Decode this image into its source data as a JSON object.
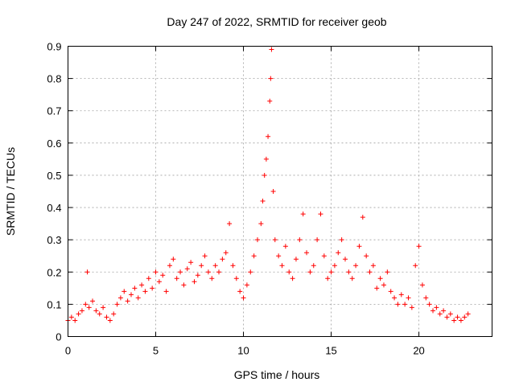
{
  "chart_data": {
    "type": "scatter",
    "title": "Day 247 of 2022, SRMTID for receiver geob",
    "xlabel": "GPS time / hours",
    "ylabel": "SRMTID / TECUs",
    "xlim": [
      0,
      24.17
    ],
    "ylim": [
      0,
      0.9
    ],
    "xticks": [
      0,
      5,
      10,
      15,
      20
    ],
    "yticks": [
      0,
      0.1,
      0.2,
      0.3,
      0.4,
      0.5,
      0.6,
      0.7,
      0.8,
      0.9
    ],
    "grid": true,
    "marker": "plus",
    "color": "#ff0000",
    "series": [
      {
        "name": "SRMTID",
        "x": [
          0.0,
          0.2,
          0.4,
          0.6,
          0.8,
          1.0,
          1.1,
          1.2,
          1.4,
          1.6,
          1.8,
          2.0,
          2.2,
          2.4,
          2.6,
          2.8,
          3.0,
          3.2,
          3.4,
          3.6,
          3.8,
          4.0,
          4.2,
          4.4,
          4.6,
          4.8,
          5.0,
          5.2,
          5.4,
          5.6,
          5.8,
          6.0,
          6.2,
          6.4,
          6.6,
          6.8,
          7.0,
          7.2,
          7.4,
          7.6,
          7.8,
          8.0,
          8.2,
          8.4,
          8.6,
          8.8,
          9.0,
          9.2,
          9.4,
          9.6,
          9.8,
          10.0,
          10.2,
          10.4,
          10.6,
          10.8,
          11.0,
          11.1,
          11.2,
          11.3,
          11.4,
          11.5,
          11.55,
          11.6,
          11.7,
          11.8,
          12.0,
          12.2,
          12.4,
          12.6,
          12.8,
          13.0,
          13.2,
          13.4,
          13.6,
          13.8,
          14.0,
          14.2,
          14.4,
          14.6,
          14.8,
          15.0,
          15.2,
          15.4,
          15.6,
          15.8,
          16.0,
          16.2,
          16.4,
          16.6,
          16.8,
          17.0,
          17.2,
          17.4,
          17.6,
          17.8,
          18.0,
          18.2,
          18.4,
          18.6,
          18.8,
          19.0,
          19.2,
          19.4,
          19.6,
          19.8,
          20.0,
          20.2,
          20.4,
          20.6,
          20.8,
          21.0,
          21.2,
          21.4,
          21.6,
          21.8,
          22.0,
          22.2,
          22.4,
          22.6,
          22.8
        ],
        "y": [
          0.05,
          0.06,
          0.05,
          0.07,
          0.08,
          0.1,
          0.2,
          0.09,
          0.11,
          0.08,
          0.07,
          0.09,
          0.06,
          0.05,
          0.07,
          0.1,
          0.12,
          0.14,
          0.11,
          0.13,
          0.15,
          0.12,
          0.16,
          0.14,
          0.18,
          0.15,
          0.2,
          0.17,
          0.19,
          0.14,
          0.22,
          0.24,
          0.18,
          0.2,
          0.16,
          0.21,
          0.23,
          0.17,
          0.19,
          0.22,
          0.25,
          0.2,
          0.18,
          0.22,
          0.2,
          0.24,
          0.26,
          0.35,
          0.22,
          0.18,
          0.14,
          0.12,
          0.16,
          0.2,
          0.25,
          0.3,
          0.35,
          0.42,
          0.5,
          0.55,
          0.62,
          0.73,
          0.8,
          0.89,
          0.45,
          0.3,
          0.25,
          0.22,
          0.28,
          0.2,
          0.18,
          0.24,
          0.3,
          0.38,
          0.26,
          0.2,
          0.22,
          0.3,
          0.38,
          0.25,
          0.18,
          0.2,
          0.22,
          0.26,
          0.3,
          0.24,
          0.2,
          0.18,
          0.22,
          0.28,
          0.37,
          0.25,
          0.2,
          0.22,
          0.15,
          0.18,
          0.16,
          0.2,
          0.14,
          0.12,
          0.1,
          0.13,
          0.1,
          0.12,
          0.09,
          0.22,
          0.28,
          0.16,
          0.12,
          0.1,
          0.08,
          0.09,
          0.07,
          0.08,
          0.06,
          0.07,
          0.05,
          0.06,
          0.05,
          0.06,
          0.07
        ]
      }
    ]
  }
}
